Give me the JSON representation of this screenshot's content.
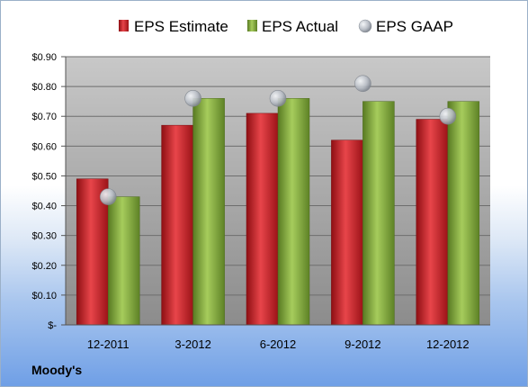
{
  "company": "Moody's",
  "colors": {
    "estimate": "#cc1f24",
    "actual": "#7fa63a",
    "gaap": "#b9bec6",
    "plot_bg_top": "#c8c8c8",
    "plot_bg_bottom": "#8c8c8c"
  },
  "chart_data": {
    "type": "bar",
    "categories": [
      "12-2011",
      "3-2012",
      "6-2012",
      "9-2012",
      "12-2012"
    ],
    "series": [
      {
        "name": "EPS Estimate",
        "kind": "bar",
        "values": [
          0.49,
          0.67,
          0.71,
          0.62,
          0.69
        ]
      },
      {
        "name": "EPS Actual",
        "kind": "bar",
        "values": [
          0.43,
          0.76,
          0.76,
          0.75,
          0.75
        ]
      },
      {
        "name": "EPS GAAP",
        "kind": "marker",
        "values": [
          0.43,
          0.76,
          0.76,
          0.81,
          0.7
        ]
      }
    ],
    "ylim": [
      0,
      0.9
    ],
    "yticks": [
      0,
      0.1,
      0.2,
      0.3,
      0.4,
      0.5,
      0.6,
      0.7,
      0.8,
      0.9
    ],
    "ytick_labels": [
      "$-",
      "$0.10",
      "$0.20",
      "$0.30",
      "$0.40",
      "$0.50",
      "$0.60",
      "$0.70",
      "$0.80",
      "$0.90"
    ],
    "legend_position": "top",
    "grid": true
  }
}
